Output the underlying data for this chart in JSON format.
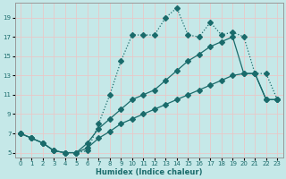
{
  "xlabel": "Humidex (Indice chaleur)",
  "xlim": [
    -0.5,
    23.5
  ],
  "ylim": [
    4.5,
    20.5
  ],
  "xticks": [
    0,
    1,
    2,
    3,
    4,
    5,
    6,
    7,
    8,
    9,
    10,
    11,
    12,
    13,
    14,
    15,
    16,
    17,
    18,
    19,
    20,
    21,
    22,
    23
  ],
  "yticks": [
    5,
    7,
    9,
    11,
    13,
    15,
    17,
    19
  ],
  "bg_color": "#c5e8e8",
  "grid_color": "#e8c8c8",
  "line_color": "#1a6b6b",
  "line1_x": [
    0,
    1,
    2,
    3,
    4,
    5,
    6,
    7,
    8,
    9,
    10,
    11,
    12,
    13,
    14,
    15,
    16,
    17,
    18,
    19,
    20,
    21,
    22,
    23
  ],
  "line1_y": [
    7.0,
    6.5,
    6.0,
    5.2,
    5.0,
    5.0,
    5.2,
    8.0,
    11.0,
    14.5,
    17.2,
    17.2,
    17.2,
    19.0,
    20.0,
    17.2,
    17.0,
    18.5,
    17.2,
    17.5,
    17.0,
    13.2,
    13.2,
    10.5
  ],
  "line2_x": [
    0,
    1,
    2,
    3,
    4,
    5,
    6,
    7,
    8,
    9,
    10,
    11,
    12,
    13,
    14,
    15,
    16,
    17,
    18,
    19,
    20,
    21,
    22,
    23
  ],
  "line2_y": [
    7.0,
    6.5,
    6.0,
    5.2,
    5.0,
    5.0,
    6.0,
    7.5,
    8.5,
    9.5,
    10.5,
    11.0,
    11.5,
    12.5,
    13.5,
    14.5,
    15.2,
    16.0,
    16.5,
    17.0,
    13.2,
    13.2,
    10.5,
    10.5
  ],
  "line3_x": [
    0,
    1,
    2,
    3,
    4,
    5,
    6,
    7,
    8,
    9,
    10,
    11,
    12,
    13,
    14,
    15,
    16,
    17,
    18,
    19,
    20,
    21,
    22,
    23
  ],
  "line3_y": [
    7.0,
    6.5,
    6.0,
    5.2,
    5.0,
    5.0,
    5.5,
    6.5,
    7.2,
    8.0,
    8.5,
    9.0,
    9.5,
    10.0,
    10.5,
    11.0,
    11.5,
    12.0,
    12.5,
    13.0,
    13.2,
    13.2,
    10.5,
    10.5
  ],
  "marker_size": 3,
  "linewidth": 0.9,
  "line1_dotted": true
}
